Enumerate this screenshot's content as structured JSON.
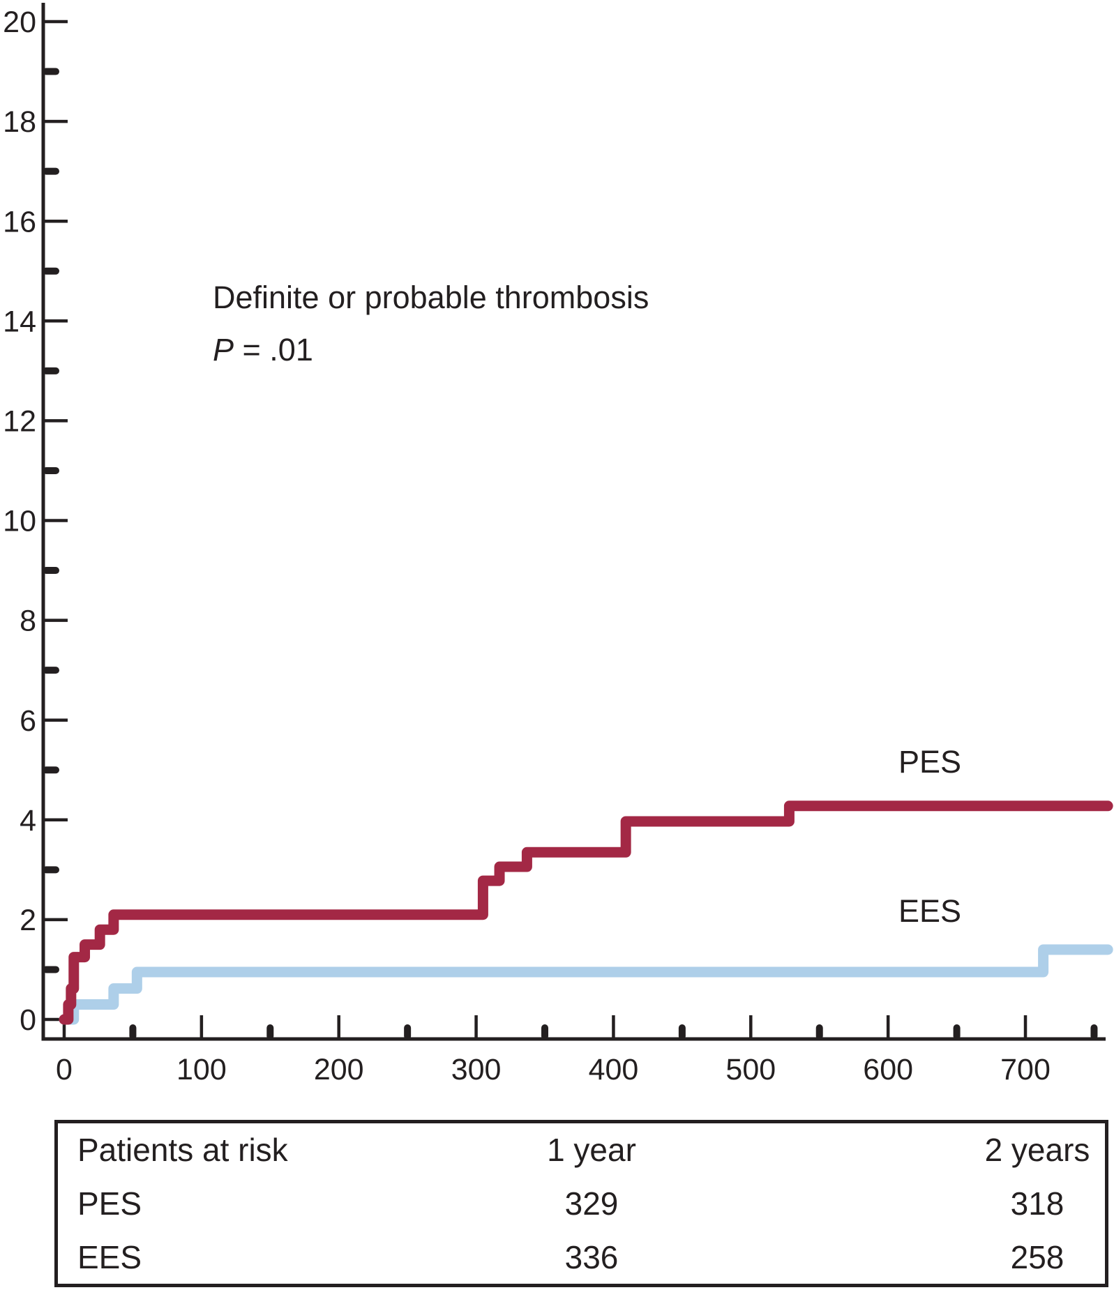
{
  "chart_data": {
    "type": "line",
    "subtype": "kaplan-meier-step",
    "title": "Definite or probable  thrombosis",
    "p_value": "P = .01",
    "xlabel": "",
    "ylabel": "",
    "xlim": [
      0,
      760
    ],
    "ylim": [
      0,
      20
    ],
    "grid": false,
    "legend_position": "inline-right-of-curves",
    "x_major_ticks": [
      0,
      100,
      200,
      300,
      400,
      500,
      600,
      700
    ],
    "x_minor_ticks": [
      50,
      150,
      250,
      350,
      450,
      550,
      650,
      750
    ],
    "y_major_ticks": [
      0,
      2,
      4,
      6,
      8,
      10,
      12,
      14,
      16,
      18,
      20
    ],
    "y_minor_ticks": [
      1,
      3,
      5,
      7,
      9,
      11,
      13,
      15,
      17,
      19
    ],
    "series": [
      {
        "name": "PES",
        "color": "#A32845",
        "points": [
          [
            0,
            0
          ],
          [
            3,
            0.3
          ],
          [
            5,
            0.62
          ],
          [
            7,
            1.25
          ],
          [
            15,
            1.5
          ],
          [
            26,
            1.8
          ],
          [
            36,
            2.1
          ],
          [
            305,
            2.78
          ],
          [
            317,
            3.06
          ],
          [
            337,
            3.35
          ],
          [
            409,
            3.97
          ],
          [
            528,
            4.28
          ],
          [
            760,
            4.28
          ]
        ]
      },
      {
        "name": "EES",
        "color": "#AECFE9",
        "points": [
          [
            0,
            0
          ],
          [
            7,
            0.3
          ],
          [
            36,
            0.62
          ],
          [
            53,
            0.95
          ],
          [
            713,
            1.4
          ],
          [
            760,
            1.4
          ]
        ]
      }
    ],
    "patients_at_risk": {
      "header": [
        "Patients at risk",
        "1 year",
        "2 years"
      ],
      "rows": [
        [
          "PES",
          "329",
          "318"
        ],
        [
          "EES",
          "336",
          "258"
        ]
      ]
    },
    "colors": {
      "axis": "#231F20",
      "text": "#231F20",
      "pes": "#A32845",
      "ees": "#AECFE9",
      "background": "#FFFFFF"
    }
  }
}
